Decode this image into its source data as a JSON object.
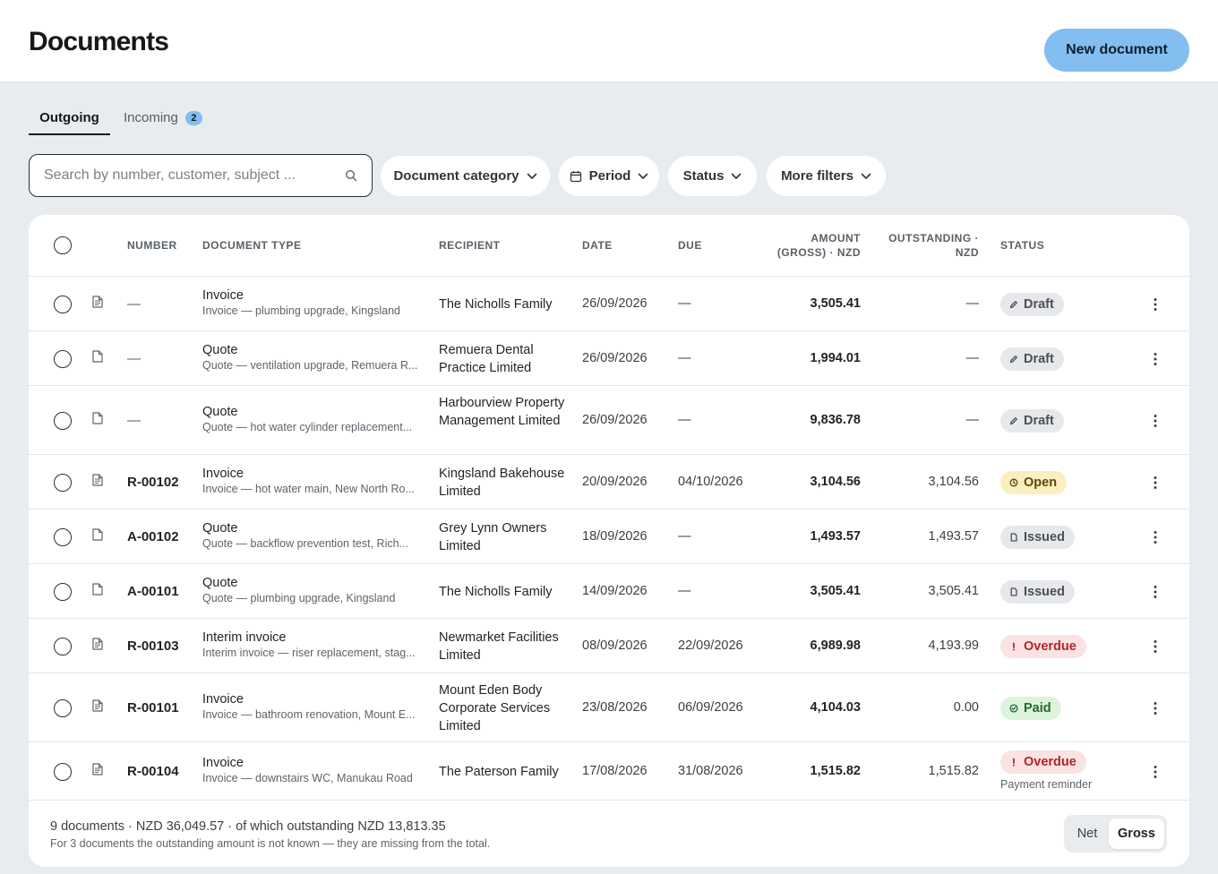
{
  "header": {
    "title": "Documents",
    "new_button": "New document"
  },
  "tabs": [
    {
      "label": "Outgoing",
      "active": true
    },
    {
      "label": "Incoming",
      "badge": "2",
      "active": false
    }
  ],
  "search": {
    "placeholder": "Search by number, customer, subject ...",
    "icon": "search-icon"
  },
  "filters": {
    "category": "Document category",
    "period": "Period",
    "status": "Status",
    "more": "More filters"
  },
  "table": {
    "headers": {
      "number": "NUMBER",
      "type": "DOCUMENT TYPE",
      "recipient": "RECIPIENT",
      "date": "DATE",
      "due": "DUE",
      "amount_1": "AMOUNT",
      "amount_2": "(GROSS) · NZD",
      "outstanding_1": "OUTSTANDING ·",
      "outstanding_2": "NZD",
      "status": "STATUS"
    },
    "rows": [
      {
        "number": "—",
        "type": "Invoice",
        "subject": "Invoice — plumbing upgrade, Kingsland",
        "recipient": "The Nicholls Family",
        "date": "26/09/2026",
        "due": "—",
        "amount": "3,505.41",
        "outstanding": "—",
        "status": "Draft"
      },
      {
        "number": "—",
        "type": "Quote",
        "subject": "Quote — ventilation upgrade, Remuera R...",
        "recipient": "Remuera Dental Practice Limited",
        "date": "26/09/2026",
        "due": "—",
        "amount": "1,994.01",
        "outstanding": "—",
        "status": "Draft"
      },
      {
        "number": "—",
        "type": "Quote",
        "subject": "Quote — hot water cylinder replacement...",
        "recipient": "Harbourview Property Management Limited",
        "date": "26/09/2026",
        "due": "—",
        "amount": "9,836.78",
        "outstanding": "—",
        "status": "Draft"
      },
      {
        "number": "R-00102",
        "type": "Invoice",
        "subject": "Invoice — hot water main, New North Ro...",
        "recipient": "Kingsland Bakehouse Limited",
        "date": "20/09/2026",
        "due": "04/10/2026",
        "amount": "3,104.56",
        "outstanding": "3,104.56",
        "status": "Open"
      },
      {
        "number": "A-00102",
        "type": "Quote",
        "subject": "Quote — backflow prevention test, Rich...",
        "recipient": "Grey Lynn Owners Limited",
        "date": "18/09/2026",
        "due": "—",
        "amount": "1,493.57",
        "outstanding": "1,493.57",
        "status": "Issued"
      },
      {
        "number": "A-00101",
        "type": "Quote",
        "subject": "Quote — plumbing upgrade, Kingsland",
        "recipient": "The Nicholls Family",
        "date": "14/09/2026",
        "due": "—",
        "amount": "3,505.41",
        "outstanding": "3,505.41",
        "status": "Issued"
      },
      {
        "number": "R-00103",
        "type": "Interim invoice",
        "subject": "Interim invoice — riser replacement, stag...",
        "recipient": "Newmarket Facilities Limited",
        "date": "08/09/2026",
        "due": "22/09/2026",
        "amount": "6,989.98",
        "outstanding": "4,193.99",
        "status": "Overdue"
      },
      {
        "number": "R-00101",
        "type": "Invoice",
        "subject": "Invoice — bathroom renovation, Mount E...",
        "recipient": "Mount Eden Body Corporate Services Limited",
        "date": "23/08/2026",
        "due": "06/09/2026",
        "amount": "4,104.03",
        "outstanding": "0.00",
        "status": "Paid"
      },
      {
        "number": "R-00104",
        "type": "Invoice",
        "subject": "Invoice — downstairs WC, Manukau Road",
        "recipient": "The Paterson Family",
        "date": "17/08/2026",
        "due": "31/08/2026",
        "amount": "1,515.82",
        "outstanding": "1,515.82",
        "status": "Overdue",
        "status_note": "Payment reminder"
      }
    ]
  },
  "footer": {
    "summary": "9 documents · NZD 36,049.57 · of which outstanding NZD 13,813.35",
    "note": "For 3 documents the outstanding amount is not known — they are missing from the total.",
    "toggle_net": "Net",
    "toggle_gross": "Gross",
    "toggle_selected": "Gross"
  },
  "colors": {
    "accent": "#84bdf0",
    "overdue": "#b4232b",
    "paid": "#1e6b2a",
    "open": "#5c4708"
  }
}
